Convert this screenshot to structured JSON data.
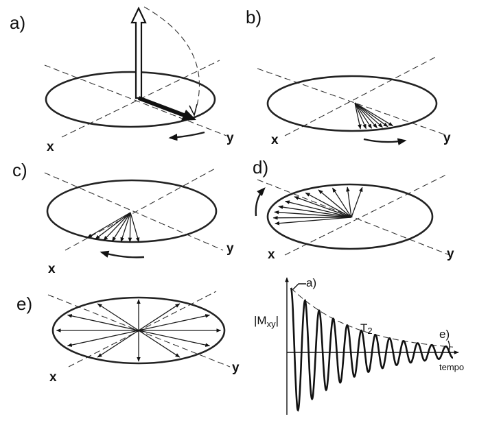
{
  "panels": {
    "a": {
      "label": "a)",
      "x_axis": "x",
      "y_axis": "y"
    },
    "b": {
      "label": "b)",
      "x_axis": "x",
      "y_axis": "y"
    },
    "c": {
      "label": "c)",
      "x_axis": "x",
      "y_axis": "y"
    },
    "d": {
      "label": "d)",
      "x_axis": "x",
      "y_axis": "y"
    },
    "e": {
      "label": "e)",
      "x_axis": "x",
      "y_axis": "y"
    }
  },
  "graph": {
    "ylabel": "|M",
    "ylabel_sub": "xy",
    "ylabel_end": "|",
    "decay_label": "T",
    "decay_label_sub": "2",
    "start_marker": "a)",
    "end_marker": "e)",
    "xlabel": "tempo"
  }
}
